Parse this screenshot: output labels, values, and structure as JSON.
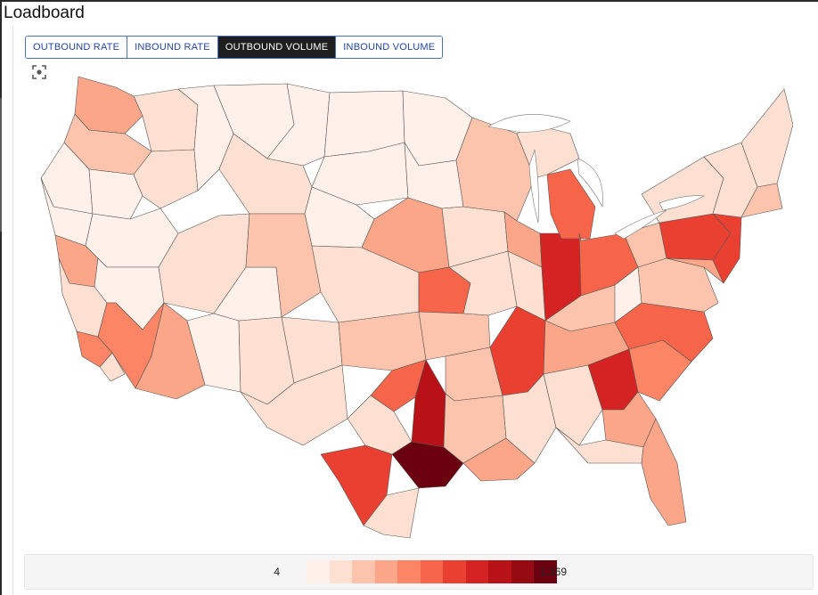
{
  "page": {
    "title": "Loadboard"
  },
  "tabs": [
    {
      "label": "OUTBOUND RATE",
      "active": false
    },
    {
      "label": "INBOUND RATE",
      "active": false
    },
    {
      "label": "OUTBOUND VOLUME",
      "active": true
    },
    {
      "label": "INBOUND VOLUME",
      "active": false
    }
  ],
  "map": {
    "fit_icon": "fit-to-bounds-icon",
    "colors": {
      "c0": "#fff0e9",
      "c1": "#fde0d1",
      "c2": "#fcc4ad",
      "c3": "#fca689",
      "c4": "#fb8565",
      "c5": "#f6644a",
      "c6": "#ea4031",
      "c7": "#d42322",
      "c8": "#b81218",
      "c9": "#960a12",
      "c10": "#6b0010"
    }
  },
  "legend": {
    "min_label": "4",
    "max_label": "1,369",
    "colors": [
      "#fff0e9",
      "#fde0d1",
      "#fcc4ad",
      "#fca689",
      "#fb8565",
      "#f6644a",
      "#ea4031",
      "#d42322",
      "#b81218",
      "#960a12",
      "#6b0010"
    ]
  }
}
